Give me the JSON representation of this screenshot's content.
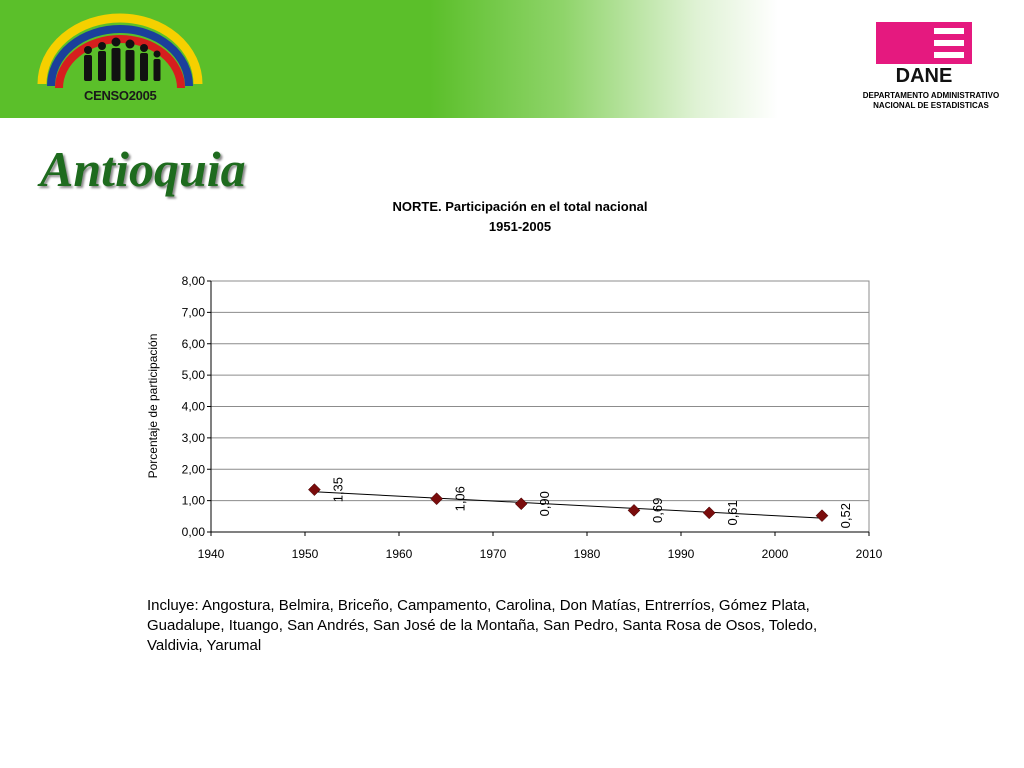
{
  "header": {
    "censo_logo_text": "CENSO2005",
    "dane_logo_text": "DANE",
    "dane_caption_line1": "DEPARTAMENTO ADMINISTRATIVO",
    "dane_caption_line2": "NACIONAL DE ESTADISTICAS"
  },
  "page": {
    "title": "Antioquia",
    "note": "Incluye: Angostura, Belmira, Briceño, Campamento, Carolina, Don Matías, Entrerríos, Gómez Plata, Guadalupe, Ituango, San Andrés, San José de la Montaña, San Pedro, Santa Rosa de Osos, Toledo, Valdivia, Yarumal"
  },
  "colors": {
    "banner_green": "#5bbf2a",
    "marker": "#7a0c0c",
    "title_green": "#1e6b1e",
    "dane_magenta": "#e5197f"
  },
  "chart_data": {
    "type": "scatter",
    "title": "NORTE. Participación en el total nacional",
    "subtitle": "1951-2005",
    "xlabel": "",
    "ylabel": "Porcentaje de participación",
    "xlim": [
      1940,
      2010
    ],
    "ylim": [
      0,
      8
    ],
    "x_ticks": [
      "1940",
      "1950",
      "1960",
      "1970",
      "1980",
      "1990",
      "2000",
      "2010"
    ],
    "y_ticks": [
      "0,00",
      "1,00",
      "2,00",
      "3,00",
      "4,00",
      "5,00",
      "6,00",
      "7,00",
      "8,00"
    ],
    "grid": true,
    "trendline": "linear",
    "points": [
      {
        "x": 1951,
        "y": 1.35,
        "label": "1,35"
      },
      {
        "x": 1964,
        "y": 1.06,
        "label": "1,06"
      },
      {
        "x": 1973,
        "y": 0.9,
        "label": "0,90"
      },
      {
        "x": 1985,
        "y": 0.69,
        "label": "0,69"
      },
      {
        "x": 1993,
        "y": 0.61,
        "label": "0,61"
      },
      {
        "x": 2005,
        "y": 0.52,
        "label": "0,52"
      }
    ]
  }
}
